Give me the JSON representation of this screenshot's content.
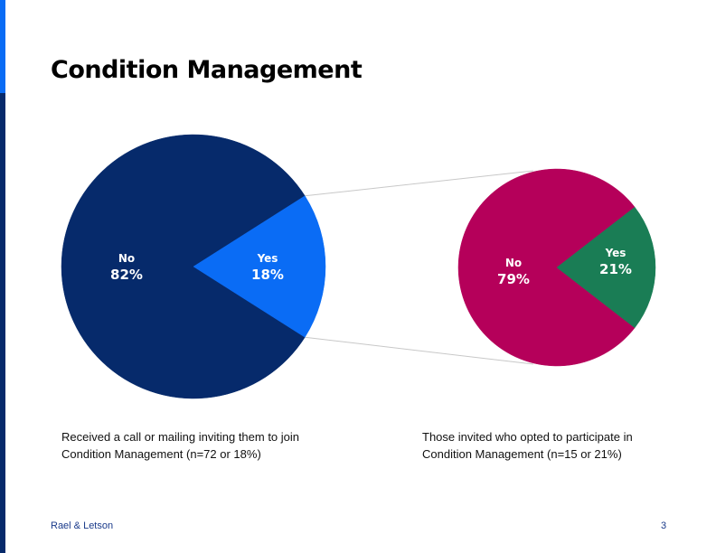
{
  "title": "Condition Management",
  "colors": {
    "no_main": "#062A6B",
    "yes_main": "#0A6CF5",
    "no_sub": "#B5005A",
    "yes_sub": "#1A7D55",
    "connector": "#C8C8C8"
  },
  "chart_data": [
    {
      "type": "pie",
      "slices": [
        {
          "label": "No",
          "value": 82,
          "value_label": "82%"
        },
        {
          "label": "Yes",
          "value": 18,
          "value_label": "18%"
        }
      ],
      "caption": [
        "Received a call or mailing inviting them to join",
        "Condition Management (n=72 or 18%)"
      ]
    },
    {
      "type": "pie",
      "slices": [
        {
          "label": "No",
          "value": 79,
          "value_label": "79%"
        },
        {
          "label": "Yes",
          "value": 21,
          "value_label": "21%"
        }
      ],
      "caption": [
        "Those invited who opted to participate in",
        "Condition Management (n=15 or 21%)"
      ]
    }
  ],
  "footer": {
    "brand": "Rael & Letson",
    "page_number": "3"
  }
}
